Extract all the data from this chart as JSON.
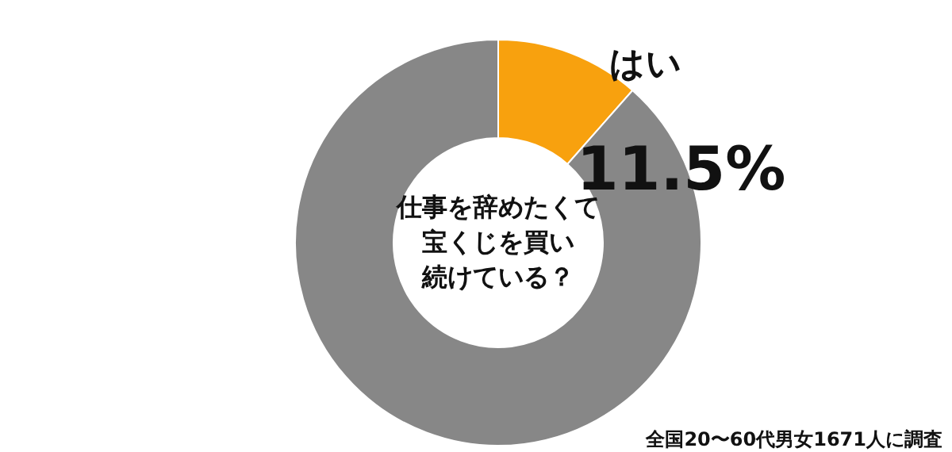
{
  "chart_data": {
    "type": "donut",
    "title": "仕事を辞めたくて宝くじを買い続けている？",
    "categories": [
      "はい",
      null
    ],
    "values": [
      11.5,
      88.5
    ],
    "colors": [
      "#f8a10e",
      "#878787"
    ],
    "value_labels": [
      "11.5%",
      null
    ],
    "annotations": [
      "全国20〜60代男女1671人に調査"
    ]
  }
}
